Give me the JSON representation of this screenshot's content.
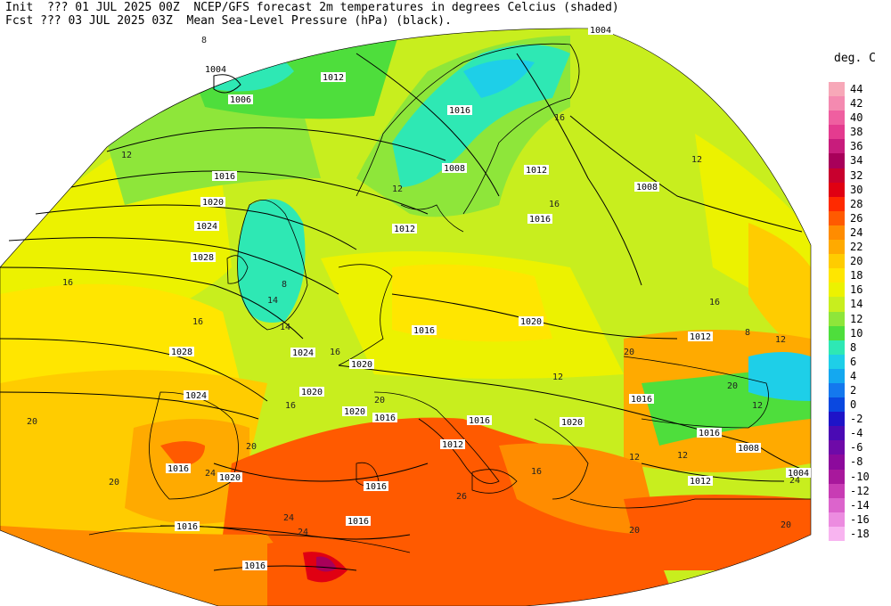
{
  "header": {
    "line1": "Init  ??? 01 JUL 2025 00Z  NCEP/GFS forecast 2m temperatures in degrees Celcius (shaded)",
    "line2": "Fcst ??? 03 JUL 2025 03Z  Mean Sea-Level Pressure (hPa) (black)."
  },
  "legend": {
    "title": "deg. C",
    "entries": [
      {
        "label": "44",
        "color": "#f7a8b8"
      },
      {
        "label": "42",
        "color": "#f48ab0"
      },
      {
        "label": "40",
        "color": "#ef5fa0"
      },
      {
        "label": "38",
        "color": "#e43b8f"
      },
      {
        "label": "36",
        "color": "#c81c7c"
      },
      {
        "label": "34",
        "color": "#a8005a"
      },
      {
        "label": "32",
        "color": "#c8002e"
      },
      {
        "label": "30",
        "color": "#e00012"
      },
      {
        "label": "28",
        "color": "#ff2a00"
      },
      {
        "label": "26",
        "color": "#ff5a00"
      },
      {
        "label": "24",
        "color": "#ff8c00"
      },
      {
        "label": "22",
        "color": "#ffaa00"
      },
      {
        "label": "20",
        "color": "#ffcc00"
      },
      {
        "label": "18",
        "color": "#ffe600"
      },
      {
        "label": "16",
        "color": "#ecf200"
      },
      {
        "label": "14",
        "color": "#c8ee1e"
      },
      {
        "label": "12",
        "color": "#8ee63a"
      },
      {
        "label": "10",
        "color": "#4ede3c"
      },
      {
        "label": "8",
        "color": "#2ee8b4"
      },
      {
        "label": "6",
        "color": "#1ecfe8"
      },
      {
        "label": "4",
        "color": "#14a8f0"
      },
      {
        "label": "2",
        "color": "#1478ee"
      },
      {
        "label": "0",
        "color": "#0a48e0"
      },
      {
        "label": "-2",
        "color": "#1e14c8"
      },
      {
        "label": "-4",
        "color": "#4a0ab4"
      },
      {
        "label": "-6",
        "color": "#6e0aa8"
      },
      {
        "label": "-8",
        "color": "#8c0a9c"
      },
      {
        "label": "-10",
        "color": "#a8189c"
      },
      {
        "label": "-12",
        "color": "#c83cb4"
      },
      {
        "label": "-14",
        "color": "#dc64cc"
      },
      {
        "label": "-16",
        "color": "#ec8ce0"
      },
      {
        "label": "-18",
        "color": "#f8b4f0"
      }
    ]
  },
  "pressure_labels": [
    "1004",
    "1006",
    "1012",
    "1016",
    "1020",
    "1024",
    "1028",
    "1008",
    "1004",
    "1008",
    "1016",
    "1012",
    "1020",
    "1016",
    "1024",
    "1020",
    "1016",
    "1016",
    "1008",
    "1004",
    "1012",
    "1016",
    "1020",
    "1016",
    "1016",
    "1012",
    "1016",
    "1020",
    "1016",
    "1028",
    "1024",
    "1020",
    "1016",
    "1012",
    "1016",
    "1016",
    "1020",
    "1012"
  ],
  "temp_labels": [
    "8",
    "12",
    "16",
    "12",
    "8",
    "14",
    "16",
    "12",
    "16",
    "20",
    "24",
    "20",
    "20",
    "24",
    "26",
    "24",
    "12",
    "16",
    "20",
    "8",
    "12",
    "16",
    "20",
    "24",
    "14",
    "16",
    "12",
    "12",
    "16",
    "20",
    "20",
    "12",
    "20",
    "16"
  ]
}
